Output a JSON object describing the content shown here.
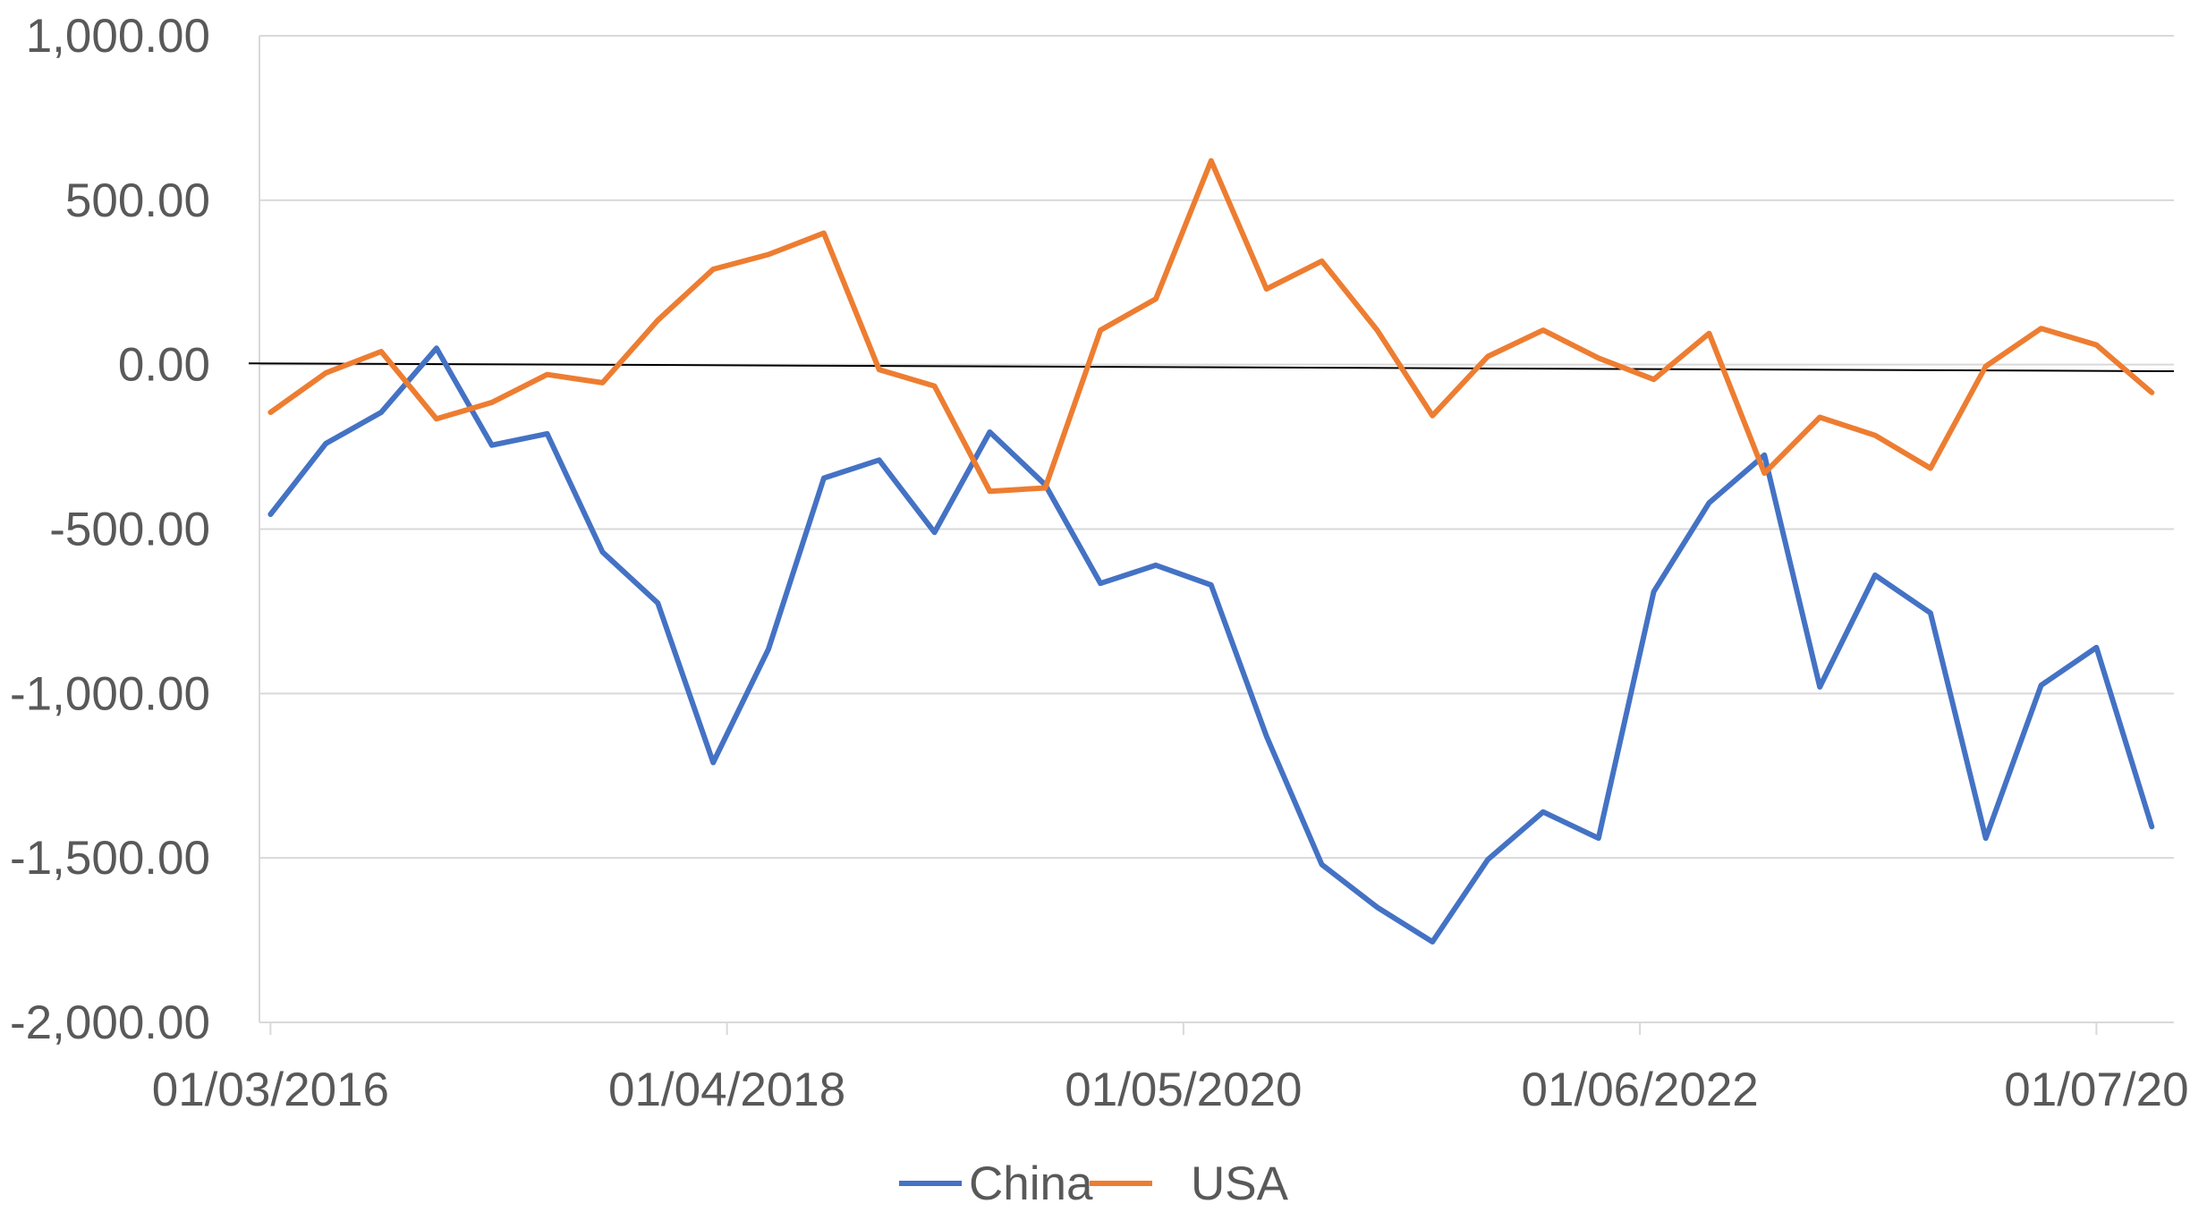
{
  "chart_data": {
    "type": "line",
    "title": "",
    "xlabel": "",
    "ylabel": "",
    "ylim": [
      -2000,
      1000
    ],
    "y_ticks": [
      1000,
      500,
      0,
      -500,
      -1000,
      -1500,
      -2000
    ],
    "y_tick_labels": [
      "1,000.00",
      "500.00",
      "0.00",
      "-500.00",
      "-1,000.00",
      "-1,500.00",
      "-2,000.00"
    ],
    "x_tick_labels": [
      "01/03/2016",
      "01/04/2018",
      "01/05/2020",
      "01/06/2022",
      "01/07/20"
    ],
    "x_tick_positions": [
      0,
      8.25,
      16.5,
      24.75,
      33
    ],
    "x_index_range": [
      -0.2,
      34.4
    ],
    "grid": true,
    "legend": "bottom-center",
    "trend_line": {
      "start": 4,
      "end": -20
    },
    "series": [
      {
        "name": "China",
        "color": "#4472C4",
        "values": [
          -455,
          -240,
          -145,
          50,
          -245,
          -210,
          -570,
          -725,
          -1210,
          -865,
          -345,
          -290,
          -510,
          -205,
          -365,
          -665,
          -610,
          -670,
          -1130,
          -1520,
          -1650,
          -1755,
          -1505,
          -1360,
          -1440,
          -690,
          -420,
          -275,
          -980,
          -640,
          -755,
          -1440,
          -975,
          -860,
          -1405
        ]
      },
      {
        "name": "USA",
        "color": "#ED7D31",
        "values": [
          -145,
          -25,
          40,
          -165,
          -115,
          -30,
          -55,
          135,
          290,
          335,
          400,
          -15,
          -65,
          -385,
          -375,
          105,
          200,
          620,
          230,
          315,
          105,
          -155,
          25,
          105,
          20,
          -45,
          95,
          -330,
          -160,
          -215,
          -315,
          -5,
          110,
          60,
          -85
        ]
      }
    ]
  }
}
